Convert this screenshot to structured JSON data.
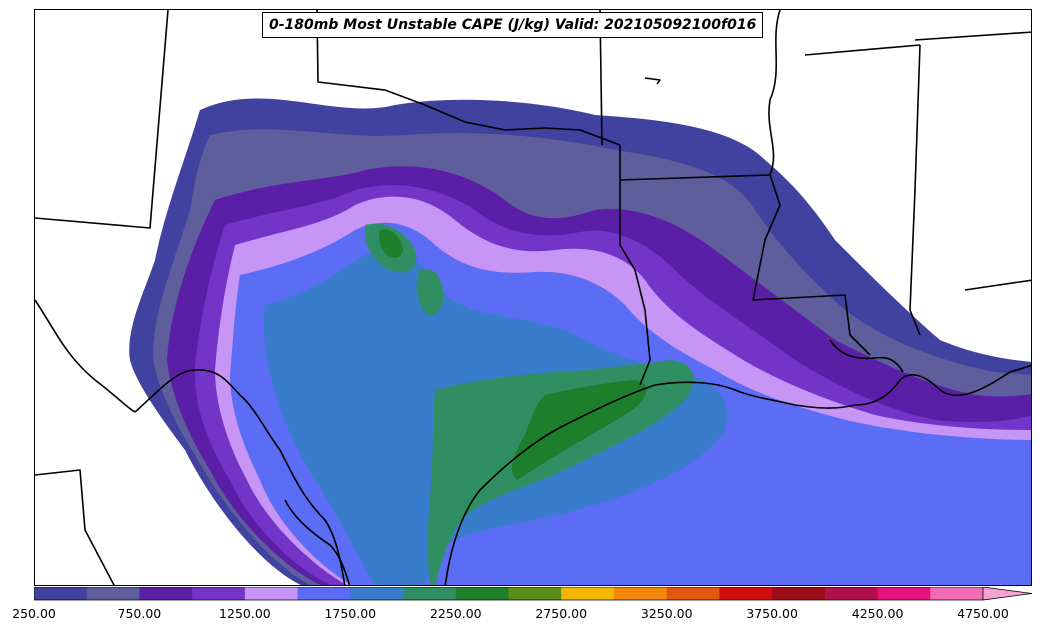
{
  "title": "0-180mb Most Unstable CAPE (J/kg) Valid: 202105092100f016",
  "colorbar": {
    "bins": [
      {
        "color": "#4141a0"
      },
      {
        "color": "#5e5e9c"
      },
      {
        "color": "#5a1fa6"
      },
      {
        "color": "#7434c8"
      },
      {
        "color": "#c695f5"
      },
      {
        "color": "#5b6cf5"
      },
      {
        "color": "#3a7ccc"
      },
      {
        "color": "#2f8f63"
      },
      {
        "color": "#1d7f2b"
      },
      {
        "color": "#5a8e19"
      },
      {
        "color": "#f4b600"
      },
      {
        "color": "#f5870a"
      },
      {
        "color": "#e4570f"
      },
      {
        "color": "#d30d0d"
      },
      {
        "color": "#9b0d17"
      },
      {
        "color": "#b0104c"
      },
      {
        "color": "#e8127d"
      },
      {
        "color": "#f06db5"
      }
    ],
    "extend_color": "#f4a3cf",
    "ticks": [
      "250.00",
      "750.00",
      "1250.00",
      "1750.00",
      "2250.00",
      "2750.00",
      "3250.00",
      "3750.00",
      "4250.00",
      "4750.00"
    ]
  }
}
